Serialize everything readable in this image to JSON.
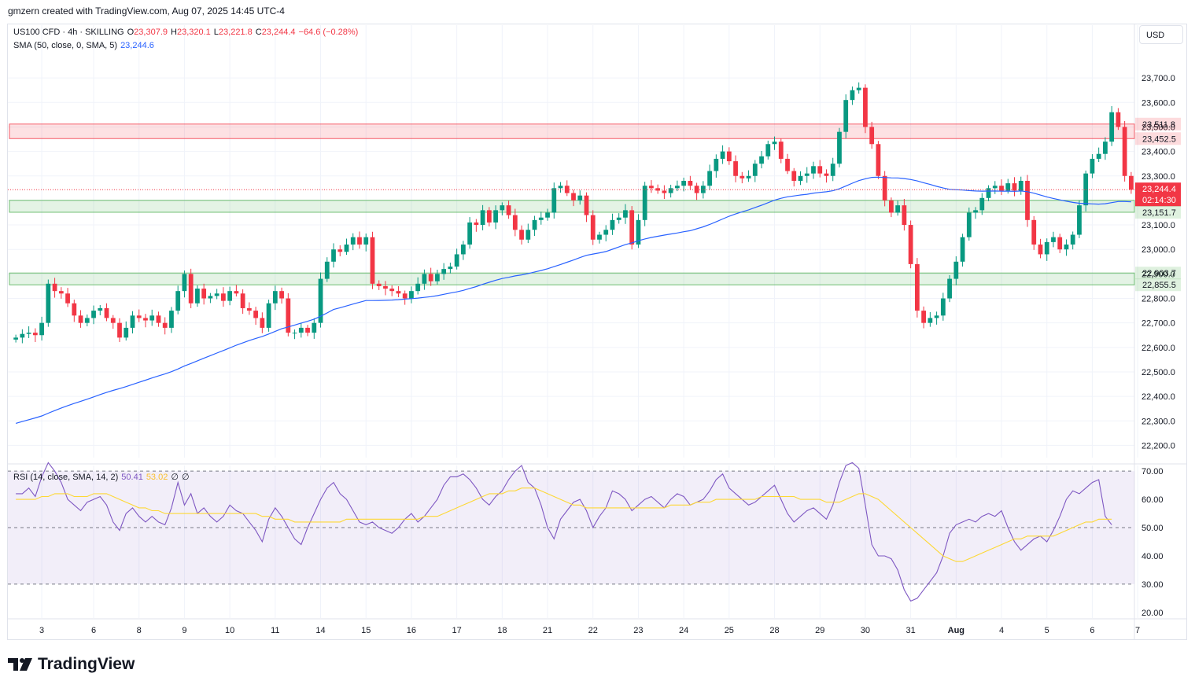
{
  "header": {
    "credit": "gmzern created with TradingView.com, Aug 07, 2025 14:45 UTC-4"
  },
  "legend": {
    "symbol": "US100 CFD · 4h · SKILLING",
    "o_label": "O",
    "o_value": "23,307.9",
    "h_label": "H",
    "h_value": "23,320.1",
    "l_label": "L",
    "l_value": "23,221.8",
    "c_label": "C",
    "c_value": "23,244.4",
    "change": "−64.6 (−0.28%)",
    "sma_label": "SMA (50, close, 0, SMA, 5)",
    "sma_value": "23,244.6",
    "rsi_label": "RSI (14, close, SMA, 14, 2)",
    "rsi_value": "50.41",
    "rsi_sma_value": "53.02",
    "rsi_extra1": "∅",
    "rsi_extra2": "∅"
  },
  "currency": "USD",
  "footer": {
    "logo_text": "TradingView",
    "logo_icon": "tradingview-logo-icon"
  },
  "colors": {
    "up": "#089981",
    "down": "#f23645",
    "sma": "#2962ff",
    "rsi": "#7e57c2",
    "rsi_sma": "#fdd835",
    "resistance_zone": "#f23645",
    "support_zone": "#4caf50"
  },
  "chart_data": [
    {
      "type": "candlestick",
      "title": "US100 CFD · 4h · SKILLING",
      "ylim": [
        22150,
        23800
      ],
      "y_ticks": [
        22200,
        22300,
        22400,
        22500,
        22600,
        22700,
        22800,
        22900,
        23000,
        23100,
        23200,
        23300,
        23400,
        23500,
        23600,
        23700
      ],
      "y_tick_labels": [
        "22,200.0",
        "22,300.0",
        "22,400.0",
        "22,500.0",
        "22,600.0",
        "22,700.0",
        "22,800.0",
        "22,900.0",
        "23,000.0",
        "23,100.0",
        "23,200.0",
        "23,300.0",
        "23,400.0",
        "23,500.0",
        "23,600.0",
        "23,700.0"
      ],
      "x_labels": [
        "3",
        "6",
        "8",
        "9",
        "10",
        "11",
        "14",
        "15",
        "16",
        "17",
        "18",
        "21",
        "22",
        "23",
        "24",
        "25",
        "28",
        "29",
        "30",
        "31",
        "Aug",
        "4",
        "5",
        "6",
        "7"
      ],
      "x_label_candle_index": [
        4,
        12,
        19,
        26,
        33,
        40,
        47,
        54,
        61,
        68,
        75,
        82,
        89,
        96,
        103,
        110,
        117,
        124,
        131,
        138,
        145,
        152,
        159,
        166,
        173
      ],
      "closes": [
        22640,
        22655,
        22660,
        22650,
        22700,
        22860,
        22830,
        22820,
        22780,
        22730,
        22700,
        22720,
        22750,
        22760,
        22720,
        22700,
        22640,
        22680,
        22730,
        22720,
        22710,
        22730,
        22700,
        22680,
        22750,
        22830,
        22900,
        22780,
        22840,
        22800,
        22810,
        22820,
        22790,
        22830,
        22820,
        22760,
        22750,
        22720,
        22680,
        22780,
        22830,
        22800,
        22660,
        22660,
        22680,
        22660,
        22700,
        22880,
        22950,
        23000,
        22990,
        23020,
        23050,
        23020,
        23050,
        22860,
        22850,
        22840,
        22830,
        22820,
        22800,
        22830,
        22860,
        22900,
        22870,
        22900,
        22920,
        22930,
        22980,
        23020,
        23110,
        23100,
        23160,
        23110,
        23160,
        23180,
        23140,
        23080,
        23040,
        23080,
        23120,
        23130,
        23150,
        23250,
        23260,
        23230,
        23200,
        23220,
        23140,
        23040,
        23060,
        23080,
        23120,
        23130,
        23160,
        23020,
        23120,
        23260,
        23250,
        23240,
        23230,
        23250,
        23260,
        23280,
        23260,
        23230,
        23260,
        23320,
        23370,
        23400,
        23360,
        23300,
        23290,
        23300,
        23350,
        23380,
        23430,
        23440,
        23370,
        23320,
        23280,
        23300,
        23310,
        23340,
        23310,
        23300,
        23350,
        23480,
        23610,
        23650,
        23660,
        23500,
        23430,
        23300,
        23200,
        23150,
        23180,
        23100,
        22940,
        22750,
        22700,
        22720,
        22730,
        22800,
        22880,
        22950,
        23050,
        23150,
        23160,
        23210,
        23250,
        23260,
        23240,
        23270,
        23240,
        23280,
        23120,
        23020,
        22980,
        23030,
        23050,
        23000,
        23020,
        23060,
        23180,
        23310,
        23370,
        23390,
        23440,
        23560,
        23500,
        23300,
        23244
      ],
      "current_price_label": "23,244.4",
      "countdown_label": "02:14:30",
      "zones": [
        {
          "kind": "resistance",
          "upper": 23511.8,
          "lower": 23452.5,
          "upper_label": "23,511.8",
          "lower_label": "23,452.5"
        },
        {
          "kind": "support",
          "upper": 23200.4,
          "lower": 23151.7,
          "upper_label": "23,200.4",
          "lower_label": "23,151.7"
        },
        {
          "kind": "support",
          "upper": 22903.7,
          "lower": 22855.5,
          "upper_label": "22,903.7",
          "lower_label": "22,855.5"
        }
      ],
      "sma": {
        "name": "SMA (50, close, 0, SMA, 5)",
        "last": 23244.6
      }
    },
    {
      "type": "line",
      "title": "RSI (14, close, SMA, 14, 2)",
      "ylim": [
        18,
        72
      ],
      "y_ticks": [
        20,
        30,
        40,
        50,
        60,
        70
      ],
      "y_tick_labels": [
        "20.00",
        "30.00",
        "40.00",
        "50.00",
        "60.00",
        "70.00"
      ],
      "bands": {
        "upper": 70,
        "middle": 50,
        "lower": 30
      },
      "series": [
        {
          "name": "RSI",
          "values": [
            62,
            62,
            64,
            61,
            68,
            73,
            70,
            66,
            60,
            58,
            56,
            59,
            60,
            61,
            58,
            52,
            49,
            55,
            57,
            54,
            52,
            54,
            52,
            51,
            57,
            66,
            58,
            62,
            55,
            57,
            54,
            52,
            54,
            58,
            56,
            55,
            52,
            49,
            45,
            53,
            57,
            54,
            50,
            46,
            44,
            50,
            55,
            60,
            64,
            66,
            62,
            60,
            56,
            52,
            51,
            52,
            50,
            49,
            48,
            50,
            53,
            55,
            52,
            54,
            57,
            60,
            65,
            68,
            68,
            69,
            67,
            64,
            60,
            58,
            61,
            63,
            67,
            70,
            72,
            66,
            64,
            58,
            50,
            46,
            53,
            56,
            59,
            60,
            56,
            50,
            54,
            57,
            63,
            62,
            60,
            56,
            58,
            60,
            61,
            59,
            57,
            60,
            62,
            61,
            58,
            59,
            60,
            63,
            67,
            69,
            64,
            62,
            60,
            58,
            59,
            61,
            63,
            65,
            60,
            55,
            52,
            54,
            56,
            57,
            55,
            53,
            58,
            66,
            72,
            73,
            71,
            58,
            44,
            40,
            40,
            39,
            35,
            28,
            24,
            25,
            28,
            31,
            34,
            40,
            48,
            51,
            52,
            53,
            52,
            54,
            55,
            54,
            56,
            50,
            45,
            42,
            44,
            46,
            47,
            45,
            49,
            54,
            60,
            63,
            62,
            64,
            66,
            67,
            54,
            51
          ]
        },
        {
          "name": "RSI-based MA",
          "values": [
            60,
            60,
            60,
            60,
            61,
            61,
            62,
            62,
            62,
            61,
            61,
            61,
            62,
            62,
            62,
            61,
            60,
            59,
            58,
            57,
            57,
            56,
            56,
            55,
            55,
            55,
            55,
            55,
            55,
            55,
            55,
            55,
            55,
            55,
            55,
            55,
            55,
            55,
            54,
            54,
            53,
            53,
            53,
            52,
            52,
            52,
            52,
            52,
            52,
            52,
            52,
            53,
            53,
            53,
            53,
            53,
            53,
            53,
            53,
            53,
            53,
            53,
            53,
            54,
            54,
            54,
            55,
            56,
            57,
            58,
            59,
            60,
            61,
            62,
            62,
            62,
            63,
            63,
            64,
            64,
            64,
            63,
            62,
            61,
            60,
            59,
            58,
            58,
            57,
            57,
            57,
            57,
            57,
            57,
            57,
            57,
            57,
            57,
            57,
            57,
            57,
            58,
            58,
            58,
            58,
            59,
            59,
            59,
            60,
            60,
            60,
            60,
            60,
            60,
            60,
            61,
            61,
            61,
            61,
            61,
            61,
            60,
            60,
            60,
            60,
            59,
            59,
            59,
            60,
            61,
            62,
            62,
            61,
            60,
            58,
            56,
            54,
            52,
            50,
            48,
            46,
            44,
            42,
            40,
            39,
            38,
            38,
            39,
            40,
            41,
            42,
            43,
            44,
            45,
            46,
            46,
            47,
            47,
            47,
            47,
            47,
            48,
            49,
            50,
            51,
            52,
            52,
            53,
            53,
            53
          ]
        }
      ]
    }
  ]
}
